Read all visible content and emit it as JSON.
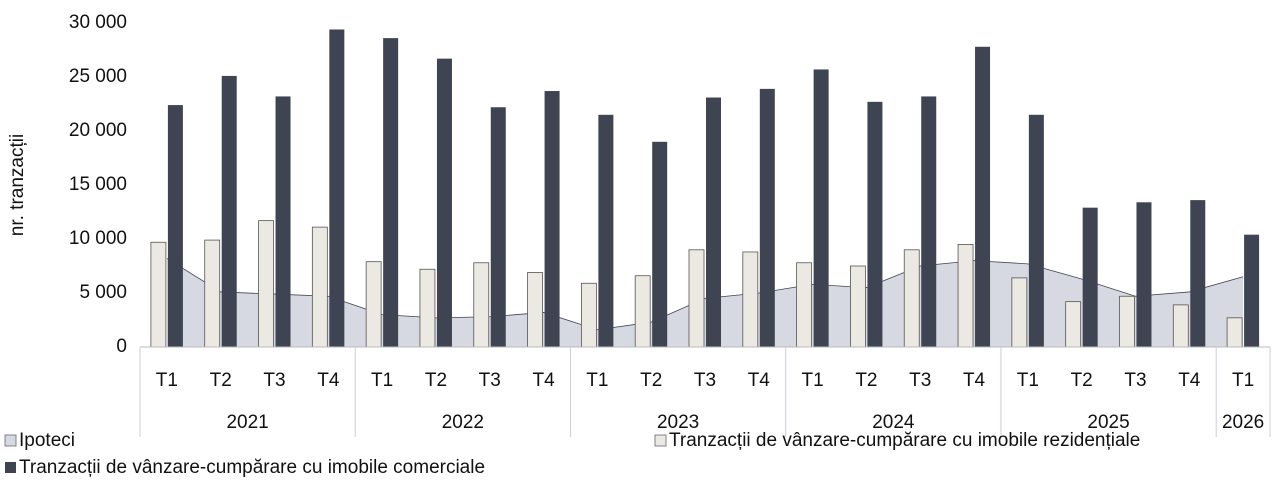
{
  "chart_data": {
    "type": "bar",
    "y_label": "nr. tranzacții",
    "categories": [
      "T1",
      "T2",
      "T3",
      "T4",
      "T1",
      "T2",
      "T3",
      "T4",
      "T1",
      "T2",
      "T3",
      "T4",
      "T1",
      "T2",
      "T3",
      "T4",
      "T1",
      "T2",
      "T3",
      "T4",
      "T1"
    ],
    "category_years": [
      "2021",
      "2021",
      "2021",
      "2021",
      "2022",
      "2022",
      "2022",
      "2022",
      "2023",
      "2023",
      "2023",
      "2023",
      "2024",
      "2024",
      "2024",
      "2024",
      "2025",
      "2025",
      "2025",
      "2025",
      "2026"
    ],
    "series": [
      {
        "name": "Ipoteci",
        "type": "area",
        "color": "#d6d9e1",
        "values": [
          8200,
          5100,
          4900,
          4700,
          3000,
          2700,
          2800,
          3200,
          1600,
          2300,
          4500,
          5000,
          5800,
          5500,
          7500,
          8000,
          7700,
          6300,
          4700,
          5100,
          6500
        ]
      },
      {
        "name": "Tranzacții de vânzare-cumpărare cu imobile rezidențiale",
        "type": "bar",
        "color": "#ebe9e2",
        "values": [
          9700,
          9900,
          11700,
          11100,
          7900,
          7200,
          7800,
          6900,
          5900,
          6600,
          9000,
          8800,
          7800,
          7500,
          9000,
          9500,
          6400,
          4200,
          4700,
          3900,
          2700
        ]
      },
      {
        "name": "Tranzacții de vânzare-cumpărare cu imobile comerciale",
        "type": "bar",
        "color": "#3f4452",
        "values": [
          22400,
          25100,
          23200,
          29400,
          28600,
          26700,
          22200,
          23700,
          21500,
          19000,
          23100,
          23900,
          25700,
          22700,
          23200,
          27800,
          21500,
          12900,
          13400,
          13600,
          10400
        ]
      }
    ],
    "ylim": [
      0,
      30000
    ],
    "yticks": [
      0,
      {
        "value": 5000,
        "label": "5 000"
      },
      {
        "value": 10000,
        "label": "10 000"
      },
      {
        "value": 15000,
        "label": "15 000"
      },
      {
        "value": 20000,
        "label": "20 000"
      },
      {
        "value": 25000,
        "label": "25 000"
      },
      {
        "value": 30000,
        "label": "30 000"
      }
    ],
    "grid": false
  }
}
